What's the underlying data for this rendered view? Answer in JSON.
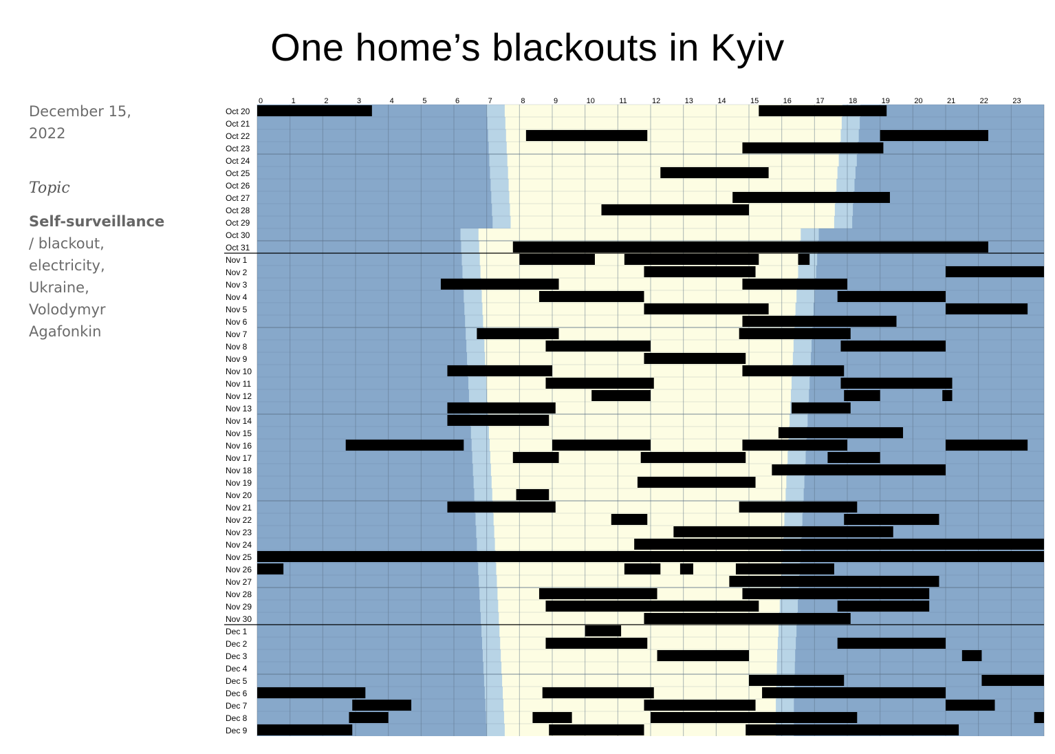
{
  "title": "One home’s blackouts in Kyiv",
  "sidebar": {
    "date": "December 15, 2022",
    "topic_label": "Topic",
    "topic_main": "Self-surveillance",
    "tags": " /  blackout, electricity, Ukraine, Volodymyr Agafonkin"
  },
  "colors": {
    "night": "#87a8ca",
    "twilight": "#b8d4e6",
    "day": "#fdfde3",
    "outage": "#000000",
    "grid": "#5a6f85"
  },
  "chart_data": {
    "type": "heatmap",
    "x_axis": {
      "label": "",
      "ticks": [
        "0",
        "1",
        "2",
        "3",
        "4",
        "5",
        "6",
        "7",
        "8",
        "9",
        "10",
        "11",
        "12",
        "13",
        "14",
        "15",
        "16",
        "17",
        "18",
        "19",
        "20",
        "21",
        "22",
        "23"
      ],
      "range": [
        0,
        24
      ]
    },
    "rows": [
      {
        "label": "Oct 20",
        "dawn": 7.0,
        "rise": 7.55,
        "set": 17.85,
        "dusk": 18.4,
        "outages": [
          [
            0,
            3.5
          ],
          [
            15.3,
            19.2
          ]
        ]
      },
      {
        "label": "Oct 21",
        "dawn": 7.02,
        "rise": 7.57,
        "set": 17.83,
        "dusk": 18.38,
        "outages": []
      },
      {
        "label": "Oct 22",
        "dawn": 7.04,
        "rise": 7.59,
        "set": 17.8,
        "dusk": 18.35,
        "outages": [
          [
            8.2,
            11.9
          ],
          [
            19.0,
            22.3
          ]
        ]
      },
      {
        "label": "Oct 23",
        "dawn": 7.06,
        "rise": 7.61,
        "set": 17.77,
        "dusk": 18.32,
        "outages": [
          [
            14.8,
            19.1
          ]
        ]
      },
      {
        "label": "Oct 24",
        "dawn": 7.08,
        "rise": 7.63,
        "set": 17.74,
        "dusk": 18.29,
        "outages": []
      },
      {
        "label": "Oct 25",
        "dawn": 7.1,
        "rise": 7.65,
        "set": 17.7,
        "dusk": 18.25,
        "outages": [
          [
            12.3,
            15.6
          ]
        ]
      },
      {
        "label": "Oct 26",
        "dawn": 7.12,
        "rise": 7.67,
        "set": 17.67,
        "dusk": 18.22,
        "outages": []
      },
      {
        "label": "Oct 27",
        "dawn": 7.14,
        "rise": 7.69,
        "set": 17.64,
        "dusk": 18.19,
        "outages": [
          [
            14.5,
            19.3
          ]
        ]
      },
      {
        "label": "Oct 28",
        "dawn": 7.16,
        "rise": 7.71,
        "set": 17.62,
        "dusk": 18.17,
        "outages": [
          [
            10.5,
            15.0
          ]
        ]
      },
      {
        "label": "Oct 29",
        "dawn": 7.18,
        "rise": 7.73,
        "set": 17.6,
        "dusk": 18.15,
        "outages": []
      },
      {
        "label": "Oct 30",
        "dawn": 6.2,
        "rise": 6.75,
        "set": 16.58,
        "dusk": 17.13,
        "outages": []
      },
      {
        "label": "Oct 31",
        "dawn": 6.22,
        "rise": 6.77,
        "set": 16.55,
        "dusk": 17.1,
        "outages": [
          [
            7.8,
            22.3
          ]
        ]
      },
      {
        "label": "Nov 1",
        "dawn": 6.24,
        "rise": 6.79,
        "set": 16.53,
        "dusk": 17.08,
        "outages": [
          [
            8.0,
            10.3
          ],
          [
            11.2,
            15.3
          ],
          [
            16.5,
            16.85
          ]
        ]
      },
      {
        "label": "Nov 2",
        "dawn": 6.26,
        "rise": 6.81,
        "set": 16.5,
        "dusk": 17.05,
        "outages": [
          [
            11.8,
            15.2
          ],
          [
            21.0,
            24
          ]
        ]
      },
      {
        "label": "Nov 3",
        "dawn": 6.28,
        "rise": 6.83,
        "set": 16.47,
        "dusk": 17.02,
        "outages": [
          [
            5.6,
            9.2
          ],
          [
            14.8,
            18.0
          ]
        ]
      },
      {
        "label": "Nov 4",
        "dawn": 6.3,
        "rise": 6.85,
        "set": 16.45,
        "dusk": 17.0,
        "outages": [
          [
            8.6,
            11.8
          ],
          [
            17.7,
            21.0
          ]
        ]
      },
      {
        "label": "Nov 5",
        "dawn": 6.32,
        "rise": 6.87,
        "set": 16.42,
        "dusk": 16.97,
        "outages": [
          [
            11.8,
            15.6
          ],
          [
            21.0,
            23.5
          ]
        ]
      },
      {
        "label": "Nov 6",
        "dawn": 6.34,
        "rise": 6.89,
        "set": 16.4,
        "dusk": 16.95,
        "outages": [
          [
            14.8,
            19.5
          ]
        ]
      },
      {
        "label": "Nov 7",
        "dawn": 6.36,
        "rise": 6.91,
        "set": 16.38,
        "dusk": 16.93,
        "outages": [
          [
            6.7,
            9.2
          ],
          [
            14.7,
            18.1
          ]
        ]
      },
      {
        "label": "Nov 8",
        "dawn": 6.38,
        "rise": 6.93,
        "set": 16.36,
        "dusk": 16.91,
        "outages": [
          [
            8.8,
            12.0
          ],
          [
            17.8,
            21.0
          ]
        ]
      },
      {
        "label": "Nov 9",
        "dawn": 6.4,
        "rise": 6.95,
        "set": 16.34,
        "dusk": 16.89,
        "outages": [
          [
            11.8,
            14.9
          ]
        ]
      },
      {
        "label": "Nov 10",
        "dawn": 6.42,
        "rise": 6.97,
        "set": 16.32,
        "dusk": 16.87,
        "outages": [
          [
            5.8,
            9.0
          ],
          [
            14.8,
            17.9
          ]
        ]
      },
      {
        "label": "Nov 11",
        "dawn": 6.44,
        "rise": 6.99,
        "set": 16.3,
        "dusk": 16.85,
        "outages": [
          [
            8.8,
            12.1
          ],
          [
            17.8,
            21.2
          ]
        ]
      },
      {
        "label": "Nov 12",
        "dawn": 6.46,
        "rise": 7.01,
        "set": 16.28,
        "dusk": 16.83,
        "outages": [
          [
            10.2,
            12.0
          ],
          [
            17.9,
            19.0
          ],
          [
            20.9,
            21.2
          ]
        ]
      },
      {
        "label": "Nov 13",
        "dawn": 6.48,
        "rise": 7.03,
        "set": 16.26,
        "dusk": 16.81,
        "outages": [
          [
            5.8,
            9.1
          ],
          [
            16.3,
            18.1
          ]
        ]
      },
      {
        "label": "Nov 14",
        "dawn": 6.5,
        "rise": 7.05,
        "set": 16.24,
        "dusk": 16.79,
        "outages": [
          [
            5.8,
            8.9
          ]
        ]
      },
      {
        "label": "Nov 15",
        "dawn": 6.52,
        "rise": 7.07,
        "set": 16.22,
        "dusk": 16.77,
        "outages": [
          [
            15.9,
            19.7
          ]
        ]
      },
      {
        "label": "Nov 16",
        "dawn": 6.54,
        "rise": 7.09,
        "set": 16.2,
        "dusk": 16.75,
        "outages": [
          [
            2.7,
            6.3
          ],
          [
            9.0,
            12.0
          ],
          [
            14.8,
            18.0
          ],
          [
            21.0,
            23.5
          ]
        ]
      },
      {
        "label": "Nov 17",
        "dawn": 6.56,
        "rise": 7.11,
        "set": 16.18,
        "dusk": 16.73,
        "outages": [
          [
            7.8,
            9.2
          ],
          [
            11.7,
            14.9
          ],
          [
            17.4,
            19.0
          ]
        ]
      },
      {
        "label": "Nov 18",
        "dawn": 6.58,
        "rise": 7.13,
        "set": 16.16,
        "dusk": 16.71,
        "outages": [
          [
            15.7,
            21.0
          ]
        ]
      },
      {
        "label": "Nov 19",
        "dawn": 6.6,
        "rise": 7.15,
        "set": 16.14,
        "dusk": 16.69,
        "outages": [
          [
            11.6,
            15.2
          ]
        ]
      },
      {
        "label": "Nov 20",
        "dawn": 6.62,
        "rise": 7.17,
        "set": 16.12,
        "dusk": 16.67,
        "outages": [
          [
            7.9,
            8.9
          ]
        ]
      },
      {
        "label": "Nov 21",
        "dawn": 6.64,
        "rise": 7.19,
        "set": 16.1,
        "dusk": 16.65,
        "outages": [
          [
            5.8,
            9.1
          ],
          [
            14.7,
            18.3
          ]
        ]
      },
      {
        "label": "Nov 22",
        "dawn": 6.66,
        "rise": 7.21,
        "set": 16.08,
        "dusk": 16.63,
        "outages": [
          [
            10.8,
            11.9
          ],
          [
            17.9,
            20.8
          ]
        ]
      },
      {
        "label": "Nov 23",
        "dawn": 6.68,
        "rise": 7.23,
        "set": 16.06,
        "dusk": 16.61,
        "outages": [
          [
            12.7,
            19.4
          ]
        ]
      },
      {
        "label": "Nov 24",
        "dawn": 6.7,
        "rise": 7.25,
        "set": 16.04,
        "dusk": 16.59,
        "outages": [
          [
            11.5,
            24
          ]
        ]
      },
      {
        "label": "Nov 25",
        "dawn": 6.72,
        "rise": 7.27,
        "set": 16.02,
        "dusk": 16.57,
        "outages": [
          [
            0,
            24
          ]
        ]
      },
      {
        "label": "Nov 26",
        "dawn": 6.74,
        "rise": 7.29,
        "set": 16.0,
        "dusk": 16.55,
        "outages": [
          [
            0,
            0.8
          ],
          [
            11.2,
            12.3
          ],
          [
            12.9,
            13.3
          ],
          [
            14.6,
            17.6
          ]
        ]
      },
      {
        "label": "Nov 27",
        "dawn": 6.76,
        "rise": 7.31,
        "set": 15.98,
        "dusk": 16.53,
        "outages": [
          [
            14.4,
            20.8
          ]
        ]
      },
      {
        "label": "Nov 28",
        "dawn": 6.78,
        "rise": 7.33,
        "set": 15.96,
        "dusk": 16.51,
        "outages": [
          [
            8.6,
            12.2
          ],
          [
            14.8,
            20.5
          ]
        ]
      },
      {
        "label": "Nov 29",
        "dawn": 6.8,
        "rise": 7.35,
        "set": 15.94,
        "dusk": 16.49,
        "outages": [
          [
            8.8,
            15.3
          ],
          [
            17.7,
            20.5
          ]
        ]
      },
      {
        "label": "Nov 30",
        "dawn": 6.82,
        "rise": 7.37,
        "set": 15.92,
        "dusk": 16.47,
        "outages": [
          [
            11.8,
            18.1
          ]
        ]
      },
      {
        "label": "Dec 1",
        "dawn": 6.84,
        "rise": 7.39,
        "set": 15.9,
        "dusk": 16.45,
        "outages": [
          [
            10.0,
            11.1
          ]
        ]
      },
      {
        "label": "Dec 2",
        "dawn": 6.86,
        "rise": 7.41,
        "set": 15.88,
        "dusk": 16.43,
        "outages": [
          [
            8.8,
            11.9
          ],
          [
            17.7,
            21.0
          ]
        ]
      },
      {
        "label": "Dec 3",
        "dawn": 6.88,
        "rise": 7.43,
        "set": 15.86,
        "dusk": 16.41,
        "outages": [
          [
            12.2,
            15.0
          ],
          [
            21.5,
            22.1
          ]
        ]
      },
      {
        "label": "Dec 4",
        "dawn": 6.9,
        "rise": 7.45,
        "set": 15.85,
        "dusk": 16.4,
        "outages": []
      },
      {
        "label": "Dec 5",
        "dawn": 6.92,
        "rise": 7.47,
        "set": 15.84,
        "dusk": 16.39,
        "outages": [
          [
            15.0,
            17.9
          ],
          [
            22.1,
            24
          ]
        ]
      },
      {
        "label": "Dec 6",
        "dawn": 6.94,
        "rise": 7.49,
        "set": 15.83,
        "dusk": 16.38,
        "outages": [
          [
            0,
            3.3
          ],
          [
            8.7,
            12.1
          ],
          [
            15.4,
            21.0
          ]
        ]
      },
      {
        "label": "Dec 7",
        "dawn": 6.96,
        "rise": 7.51,
        "set": 15.82,
        "dusk": 16.37,
        "outages": [
          [
            2.9,
            4.7
          ],
          [
            11.8,
            15.2
          ],
          [
            21.0,
            22.5
          ]
        ]
      },
      {
        "label": "Dec 8",
        "dawn": 6.98,
        "rise": 7.53,
        "set": 15.82,
        "dusk": 16.37,
        "outages": [
          [
            2.8,
            4.0
          ],
          [
            8.4,
            9.6
          ],
          [
            12.0,
            18.3
          ],
          [
            23.7,
            24
          ]
        ]
      },
      {
        "label": "Dec 9",
        "dawn": 7.0,
        "rise": 7.55,
        "set": 15.82,
        "dusk": 16.37,
        "outages": [
          [
            0,
            2.9
          ],
          [
            8.9,
            11.8
          ],
          [
            14.9,
            21.4
          ]
        ]
      }
    ],
    "week_separators": [
      "Oct 24",
      "Oct 31",
      "Nov 7",
      "Nov 14",
      "Nov 21",
      "Nov 28",
      "Dec 5"
    ],
    "month_separators": [
      "Oct 31",
      "Nov 30"
    ],
    "grid": true,
    "legend": "none"
  }
}
